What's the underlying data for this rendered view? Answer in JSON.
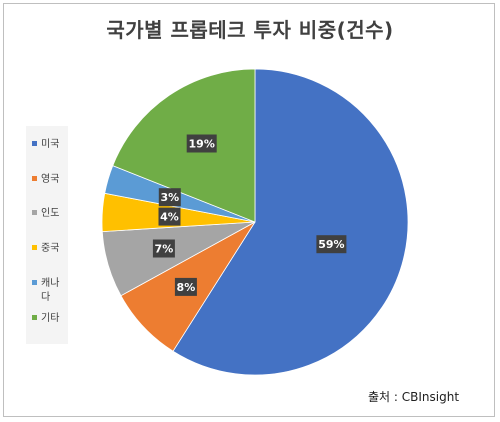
{
  "title": "국가별 프롭테크 투자 비중(건수)",
  "source": "출처 : CBInsight",
  "chart_data": {
    "type": "pie",
    "title": "국가별 프롭테크 투자 비중(건수)",
    "start_angle_deg": 0,
    "direction": "clockwise",
    "slices": [
      {
        "label": "미국",
        "value": 59,
        "display": "59%",
        "color": "#4472c4"
      },
      {
        "label": "영국",
        "value": 8,
        "display": "8%",
        "color": "#ed7d31"
      },
      {
        "label": "인도",
        "value": 7,
        "display": "7%",
        "color": "#a5a5a5"
      },
      {
        "label": "중국",
        "value": 4,
        "display": "4%",
        "color": "#ffc000"
      },
      {
        "label": "캐나다",
        "value": 3,
        "display": "3%",
        "color": "#5b9bd5"
      },
      {
        "label": "기타",
        "value": 19,
        "display": "19%",
        "color": "#70ad47"
      }
    ],
    "data_label_style": {
      "background": "#404040",
      "color": "#ffffff"
    },
    "legend": {
      "position": "left"
    }
  }
}
